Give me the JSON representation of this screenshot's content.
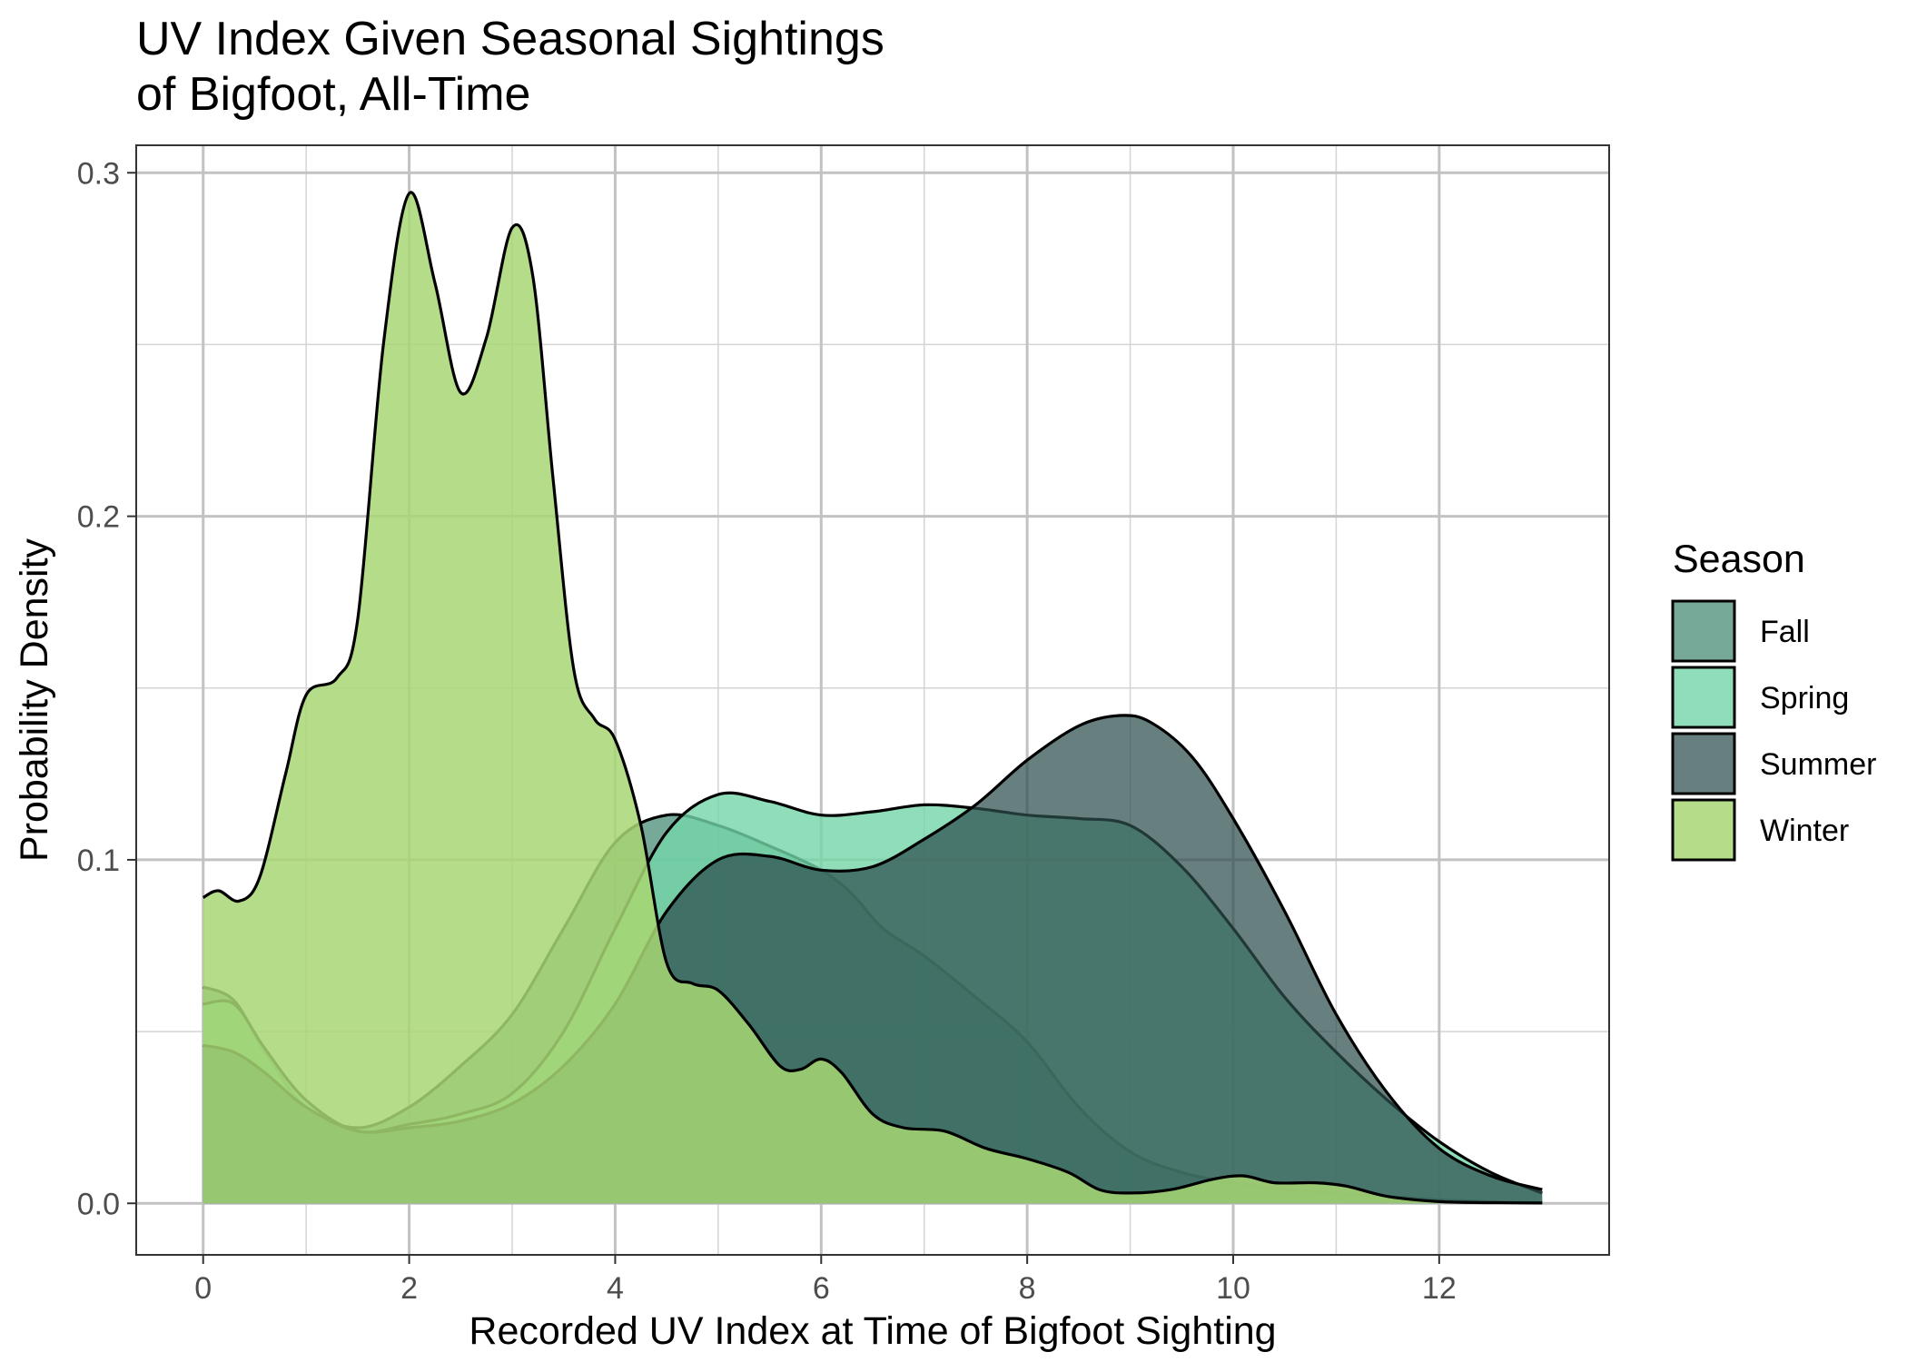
{
  "chart_data": {
    "type": "area",
    "title": [
      "UV Index Given Seasonal Sightings",
      "of Bigfoot, All-Time"
    ],
    "xlabel": "Recorded UV Index at Time of Bigfoot Sighting",
    "ylabel": "Probability Density",
    "xlim": [
      -0.65,
      13.65
    ],
    "ylim": [
      -0.015,
      0.308
    ],
    "x_ticks": [
      0,
      2,
      4,
      6,
      8,
      10,
      12
    ],
    "x_tick_labels": [
      "0",
      "2",
      "4",
      "6",
      "8",
      "10",
      "12"
    ],
    "y_ticks": [
      0.0,
      0.1,
      0.2,
      0.3
    ],
    "y_tick_labels": [
      "0.0",
      "0.1",
      "0.2",
      "0.3"
    ],
    "grid": true,
    "legend": {
      "title": "Season",
      "position": "right"
    },
    "series": [
      {
        "name": "Fall",
        "color": "#4a8c76",
        "fill_opacity": 0.75,
        "points": [
          [
            0,
            0.063
          ],
          [
            0.3,
            0.059
          ],
          [
            0.6,
            0.044
          ],
          [
            1.0,
            0.028
          ],
          [
            1.5,
            0.022
          ],
          [
            2.0,
            0.028
          ],
          [
            2.5,
            0.04
          ],
          [
            3.0,
            0.055
          ],
          [
            3.5,
            0.08
          ],
          [
            4.0,
            0.105
          ],
          [
            4.5,
            0.113
          ],
          [
            5.0,
            0.11
          ],
          [
            5.5,
            0.104
          ],
          [
            6.0,
            0.097
          ],
          [
            6.3,
            0.09
          ],
          [
            6.6,
            0.08
          ],
          [
            7.0,
            0.072
          ],
          [
            7.5,
            0.06
          ],
          [
            8.0,
            0.047
          ],
          [
            8.5,
            0.028
          ],
          [
            9.0,
            0.015
          ],
          [
            9.5,
            0.009
          ],
          [
            10.0,
            0.006
          ],
          [
            10.5,
            0.004
          ],
          [
            11.0,
            0.003
          ],
          [
            11.5,
            0.002
          ],
          [
            12.0,
            0.001
          ],
          [
            12.5,
            0.0005
          ],
          [
            13.0,
            0.0002
          ]
        ]
      },
      {
        "name": "Spring",
        "color": "#73d6a7",
        "fill_opacity": 0.8,
        "points": [
          [
            0,
            0.058
          ],
          [
            0.3,
            0.058
          ],
          [
            0.6,
            0.045
          ],
          [
            1.0,
            0.03
          ],
          [
            1.5,
            0.021
          ],
          [
            2.0,
            0.023
          ],
          [
            2.5,
            0.026
          ],
          [
            3.0,
            0.032
          ],
          [
            3.5,
            0.05
          ],
          [
            4.0,
            0.08
          ],
          [
            4.5,
            0.108
          ],
          [
            5.0,
            0.119
          ],
          [
            5.5,
            0.117
          ],
          [
            6.0,
            0.113
          ],
          [
            6.5,
            0.114
          ],
          [
            7.0,
            0.116
          ],
          [
            7.5,
            0.115
          ],
          [
            8.0,
            0.113
          ],
          [
            8.5,
            0.112
          ],
          [
            9.0,
            0.11
          ],
          [
            9.5,
            0.098
          ],
          [
            10.0,
            0.08
          ],
          [
            10.5,
            0.06
          ],
          [
            11.0,
            0.044
          ],
          [
            11.5,
            0.03
          ],
          [
            12.0,
            0.018
          ],
          [
            12.5,
            0.009
          ],
          [
            13.0,
            0.003
          ]
        ]
      },
      {
        "name": "Summer",
        "color": "#2e4d4d",
        "fill_opacity": 0.72,
        "points": [
          [
            0,
            0.046
          ],
          [
            0.3,
            0.044
          ],
          [
            0.6,
            0.038
          ],
          [
            1.0,
            0.028
          ],
          [
            1.5,
            0.021
          ],
          [
            2.0,
            0.022
          ],
          [
            2.5,
            0.024
          ],
          [
            3.0,
            0.029
          ],
          [
            3.5,
            0.04
          ],
          [
            4.0,
            0.058
          ],
          [
            4.5,
            0.085
          ],
          [
            5.0,
            0.1
          ],
          [
            5.5,
            0.101
          ],
          [
            6.0,
            0.097
          ],
          [
            6.5,
            0.098
          ],
          [
            7.0,
            0.106
          ],
          [
            7.5,
            0.116
          ],
          [
            8.0,
            0.129
          ],
          [
            8.5,
            0.139
          ],
          [
            8.9,
            0.142
          ],
          [
            9.2,
            0.14
          ],
          [
            9.6,
            0.13
          ],
          [
            10.0,
            0.112
          ],
          [
            10.5,
            0.085
          ],
          [
            11.0,
            0.055
          ],
          [
            11.5,
            0.032
          ],
          [
            12.0,
            0.016
          ],
          [
            12.5,
            0.008
          ],
          [
            13.0,
            0.004
          ]
        ]
      },
      {
        "name": "Winter",
        "color": "#a8d673",
        "fill_opacity": 0.85,
        "points": [
          [
            0,
            0.089
          ],
          [
            0.15,
            0.091
          ],
          [
            0.35,
            0.088
          ],
          [
            0.55,
            0.095
          ],
          [
            0.8,
            0.125
          ],
          [
            1.0,
            0.148
          ],
          [
            1.3,
            0.153
          ],
          [
            1.5,
            0.17
          ],
          [
            1.75,
            0.25
          ],
          [
            2.0,
            0.294
          ],
          [
            2.25,
            0.268
          ],
          [
            2.5,
            0.236
          ],
          [
            2.75,
            0.252
          ],
          [
            3.0,
            0.284
          ],
          [
            3.2,
            0.27
          ],
          [
            3.4,
            0.21
          ],
          [
            3.6,
            0.155
          ],
          [
            3.8,
            0.141
          ],
          [
            4.0,
            0.135
          ],
          [
            4.25,
            0.11
          ],
          [
            4.5,
            0.07
          ],
          [
            4.75,
            0.064
          ],
          [
            5.0,
            0.062
          ],
          [
            5.3,
            0.052
          ],
          [
            5.6,
            0.04
          ],
          [
            5.8,
            0.039
          ],
          [
            6.0,
            0.042
          ],
          [
            6.2,
            0.038
          ],
          [
            6.5,
            0.026
          ],
          [
            6.8,
            0.022
          ],
          [
            7.2,
            0.021
          ],
          [
            7.6,
            0.016
          ],
          [
            8.0,
            0.013
          ],
          [
            8.4,
            0.009
          ],
          [
            8.7,
            0.004
          ],
          [
            9.0,
            0.003
          ],
          [
            9.4,
            0.004
          ],
          [
            9.8,
            0.007
          ],
          [
            10.1,
            0.008
          ],
          [
            10.4,
            0.006
          ],
          [
            10.8,
            0.006
          ],
          [
            11.1,
            0.005
          ],
          [
            11.5,
            0.002
          ],
          [
            12.0,
            0.0005
          ],
          [
            12.5,
            0.0002
          ],
          [
            13.0,
            0.0001
          ]
        ]
      }
    ]
  }
}
